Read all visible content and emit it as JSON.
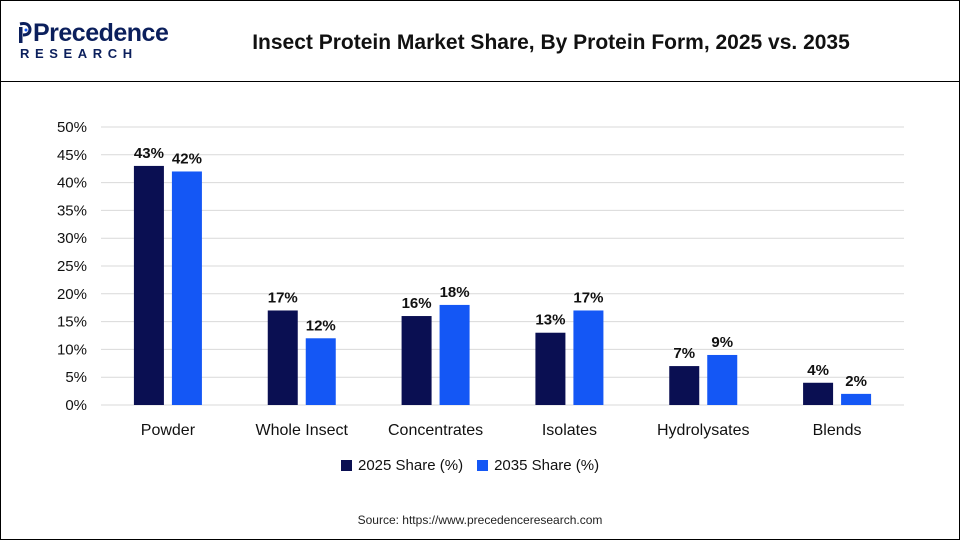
{
  "header": {
    "logo_main": "Precedence",
    "logo_sub": "RESEARCH",
    "title": "Insect Protein Market Share, By Protein Form, 2025 vs. 2035"
  },
  "colors": {
    "series_2025": "#0a0f52",
    "series_2035": "#1457f5",
    "grid": "#d9d9d9",
    "brand": "#0b1f5c"
  },
  "chart_data": {
    "type": "bar",
    "title": "Insect Protein Market Share, By Protein Form, 2025 vs. 2035",
    "xlabel": "",
    "ylabel": "",
    "categories": [
      "Powder",
      "Whole Insect",
      "Concentrates",
      "Isolates",
      "Hydrolysates",
      "Blends"
    ],
    "series": [
      {
        "name": "2025 Share (%)",
        "values": [
          43,
          17,
          16,
          13,
          7,
          4
        ]
      },
      {
        "name": "2035 Share (%)",
        "values": [
          42,
          12,
          18,
          17,
          9,
          2
        ]
      }
    ],
    "ylim": [
      0,
      50
    ],
    "yticks": [
      "0%",
      "5%",
      "10%",
      "15%",
      "20%",
      "25%",
      "30%",
      "35%",
      "40%",
      "45%",
      "50%"
    ],
    "data_labels": [
      [
        "43%",
        "17%",
        "16%",
        "13%",
        "7%",
        "4%"
      ],
      [
        "42%",
        "12%",
        "18%",
        "17%",
        "9%",
        "2%"
      ]
    ],
    "grid": true,
    "legend_position": "bottom"
  },
  "legend": {
    "items": [
      "2025 Share (%)",
      "2035 Share (%)"
    ]
  },
  "source": "Source: https://www.precedenceresearch.com"
}
